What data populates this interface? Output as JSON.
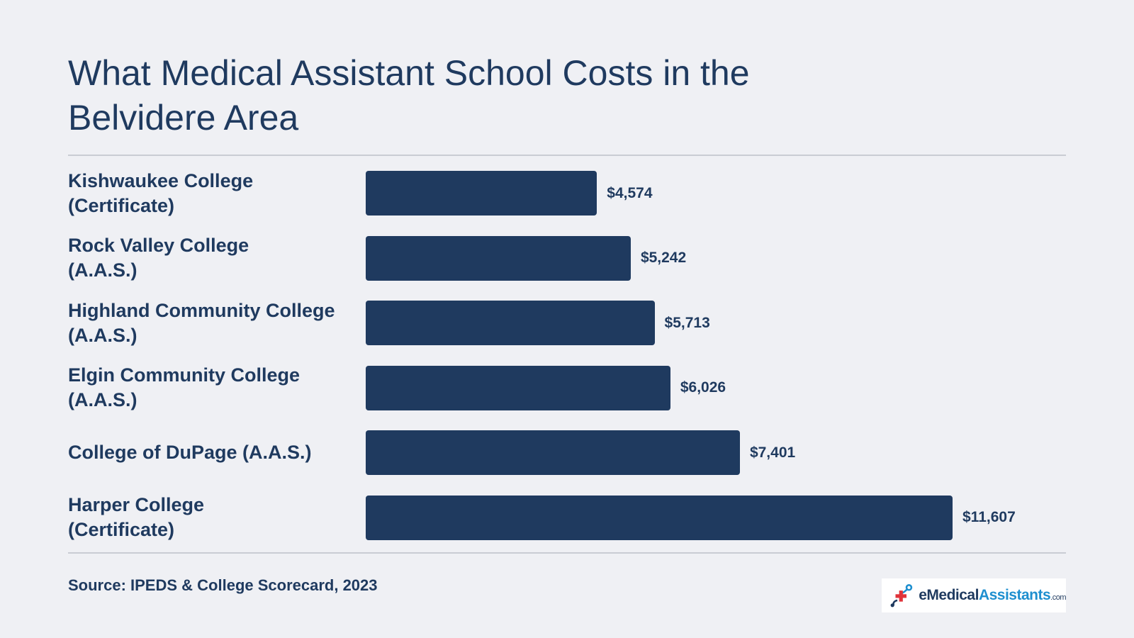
{
  "title": "What Medical Assistant School Costs in the Belvidere Area",
  "source": "Source: IPEDS & College Scorecard, 2023",
  "logo": {
    "part1": "e",
    "part2": "Medical",
    "part3": "Assistants",
    "part4": ".com"
  },
  "colors": {
    "background": "#eff0f4",
    "bar": "#1f3a5f",
    "text": "#1f3a5f",
    "accent": "#1e8fcf",
    "logo_cross": "#e0333a"
  },
  "chart_data": {
    "type": "bar",
    "orientation": "horizontal",
    "categories": [
      "Kishwaukee College\n(Certificate)",
      "Rock Valley College\n(A.A.S.)",
      "Highland Community College\n(A.A.S.)",
      "Elgin Community College\n(A.A.S.)",
      "College of DuPage (A.A.S.)",
      "Harper College\n(Certificate)"
    ],
    "values": [
      4574,
      5242,
      5713,
      6026,
      7401,
      11607
    ],
    "value_labels": [
      "$4,574",
      "$5,242",
      "$5,713",
      "$6,026",
      "$7,401",
      "$11,607"
    ],
    "grid": false,
    "legend": "none"
  }
}
